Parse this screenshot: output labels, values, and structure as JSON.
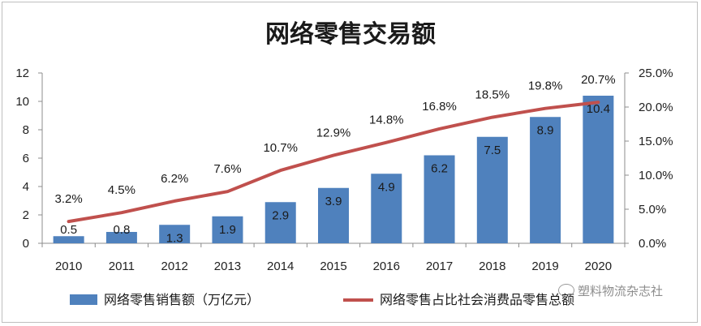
{
  "chart_data": {
    "type": "bar",
    "title": "网络零售交易额",
    "categories": [
      "2010",
      "2011",
      "2012",
      "2013",
      "2014",
      "2015",
      "2016",
      "2017",
      "2018",
      "2019",
      "2020"
    ],
    "series": [
      {
        "name": "网络零售销售额（万亿元）",
        "type": "bar",
        "axis": "left",
        "color": "#4f81bd",
        "values": [
          0.5,
          0.8,
          1.3,
          1.9,
          2.9,
          3.9,
          4.9,
          6.2,
          7.5,
          8.9,
          10.4
        ],
        "labels": [
          "0.5",
          "0.8",
          "1.3",
          "1.9",
          "2.9",
          "3.9",
          "4.9",
          "6.2",
          "7.5",
          "8.9",
          "10.4"
        ]
      },
      {
        "name": "网络零售占比社会消费品零售总额",
        "type": "line",
        "axis": "right",
        "color": "#c0504d",
        "values": [
          3.2,
          4.5,
          6.2,
          7.6,
          10.7,
          12.9,
          14.8,
          16.8,
          18.5,
          19.8,
          20.7
        ],
        "labels": [
          "3.2%",
          "4.5%",
          "6.2%",
          "7.6%",
          "10.7%",
          "12.9%",
          "14.8%",
          "16.8%",
          "18.5%",
          "19.8%",
          "20.7%"
        ]
      }
    ],
    "y_left": {
      "ylim": [
        0,
        12
      ],
      "ticks": [
        0,
        2,
        4,
        6,
        8,
        10,
        12
      ],
      "tick_labels": [
        "0",
        "2",
        "4",
        "6",
        "8",
        "10",
        "12"
      ]
    },
    "y_right": {
      "ylim": [
        0,
        25
      ],
      "ticks": [
        0,
        5,
        10,
        15,
        20,
        25
      ],
      "tick_labels": [
        "0.0%",
        "5.0%",
        "10.0%",
        "15.0%",
        "20.0%",
        "25.0%"
      ]
    },
    "grid": false,
    "legend_position": "bottom"
  },
  "watermark": {
    "text": "塑料物流杂志社"
  }
}
